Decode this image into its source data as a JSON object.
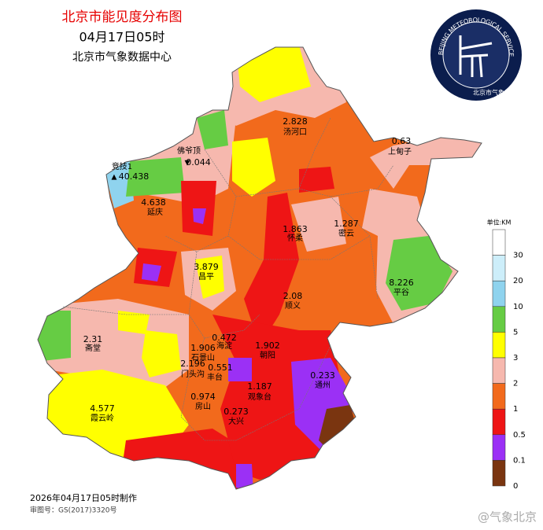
{
  "header": {
    "title": "北京市能见度分布图",
    "time": "04月17日05时",
    "org": "北京市气象数据中心"
  },
  "logo": {
    "ring_text": "BEIJING METEOROLOGICAL SERVICE",
    "name": "北京市气象局"
  },
  "legend": {
    "unit": "单位:KM",
    "items": [
      {
        "label": 30,
        "color": "#ffffff"
      },
      {
        "label": 20,
        "color": "#cdeefa"
      },
      {
        "label": 10,
        "color": "#8fd3ee"
      },
      {
        "label": 5,
        "color": "#66cc44"
      },
      {
        "label": 3,
        "color": "#ffff00"
      },
      {
        "label": 2,
        "color": "#f6b8ae"
      },
      {
        "label": 1,
        "color": "#f26a1c"
      },
      {
        "label": 0.5,
        "color": "#ee1515"
      },
      {
        "label": 0.1,
        "color": "#9b30f5"
      },
      {
        "label": 0,
        "color": "#7a3510"
      }
    ]
  },
  "stations": [
    {
      "name": "汤河口",
      "value": 2.828
    },
    {
      "name": "上甸子",
      "value": 0.63
    },
    {
      "name": "佛爷顶",
      "value": 0.044
    },
    {
      "name": "竞技1",
      "value": 40.438
    },
    {
      "name": "延庆",
      "value": 4.638
    },
    {
      "name": "怀柔",
      "value": 1.863
    },
    {
      "name": "密云",
      "value": 1.287
    },
    {
      "name": "昌平",
      "value": 3.879
    },
    {
      "name": "平谷",
      "value": 8.226
    },
    {
      "name": "顺义",
      "value": 2.08
    },
    {
      "name": "斋堂",
      "value": 2.31
    },
    {
      "name": "海淀",
      "value": 0.472
    },
    {
      "name": "朝阳",
      "value": 1.902
    },
    {
      "name": "石景山",
      "value": 1.906
    },
    {
      "name": "门头沟",
      "value": 2.196
    },
    {
      "name": "丰台",
      "value": 0.551
    },
    {
      "name": "通州",
      "value": 0.233
    },
    {
      "name": "观象台",
      "value": 1.187
    },
    {
      "name": "房山",
      "value": 0.974
    },
    {
      "name": "大兴",
      "value": 0.273
    },
    {
      "name": "霞云岭",
      "value": 4.577
    }
  ],
  "footer": {
    "made": "2026年04月17日05时制作",
    "approval": "审图号：GS(2017)3320号",
    "watermark": "@气象北京"
  }
}
